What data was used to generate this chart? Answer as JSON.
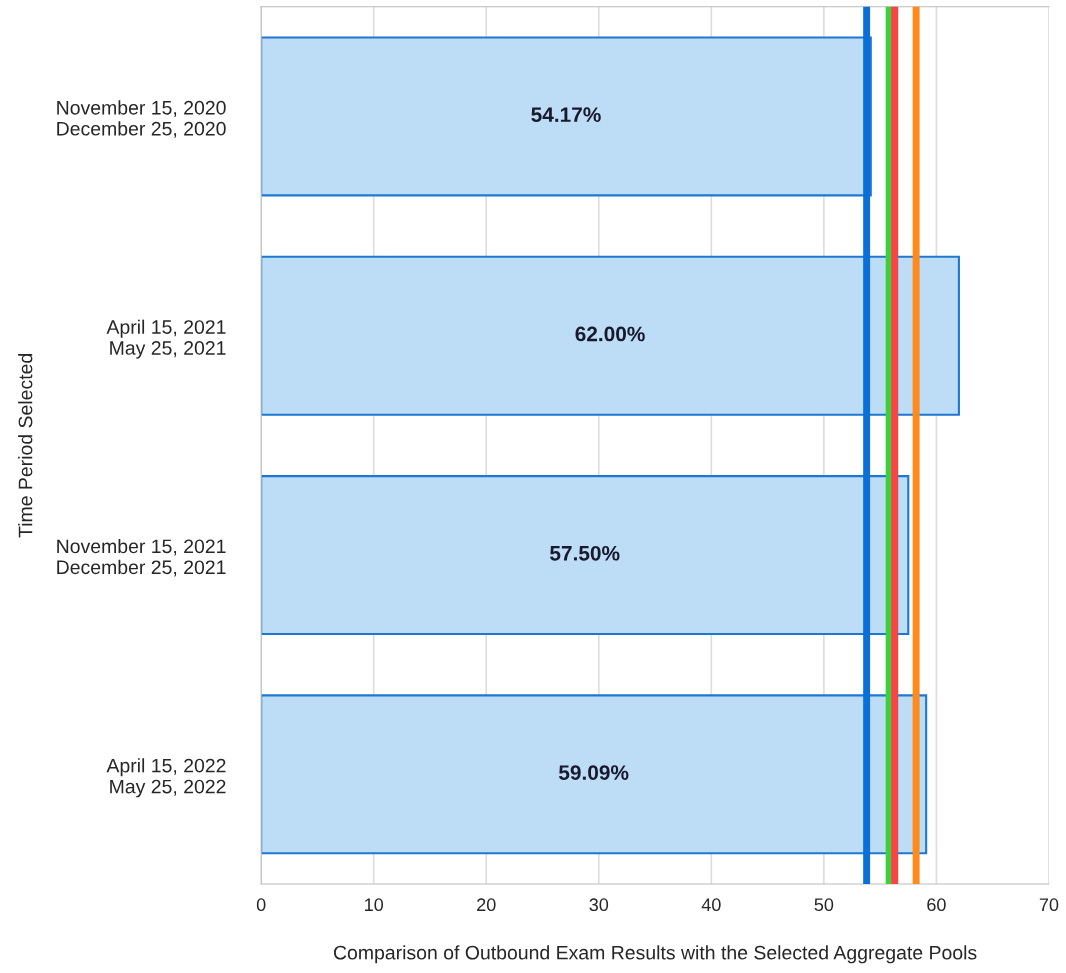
{
  "chart_data": {
    "type": "bar",
    "orientation": "horizontal",
    "xlabel": "Comparison of Outbound Exam Results with the Selected Aggregate Pools",
    "ylabel": "Time Period Selected",
    "categories": [
      "November 15, 2020\nDecember 25, 2020",
      "April 15, 2021\nMay 25, 2021",
      "November 15, 2021\nDecember 25, 2021",
      "April 15, 2022\nMay 25, 2022"
    ],
    "values": [
      54.17,
      62.0,
      57.5,
      59.09
    ],
    "value_labels": [
      "54.17%",
      "62.00%",
      "57.50%",
      "59.09%"
    ],
    "color": "#bddcf5",
    "xlim": [
      0,
      70
    ],
    "xticks": [
      0,
      10,
      20,
      30,
      40,
      50,
      60,
      70
    ],
    "grid": "x",
    "ref_lines": [
      {
        "axis": "x",
        "value": 53.8,
        "color": "#0a6fd6"
      },
      {
        "axis": "x",
        "value": 55.8,
        "color": "#3ecf3e"
      },
      {
        "axis": "x",
        "value": 56.3,
        "color": "#f94444"
      },
      {
        "axis": "x",
        "value": 58.2,
        "color": "#ff8a1e"
      }
    ]
  }
}
